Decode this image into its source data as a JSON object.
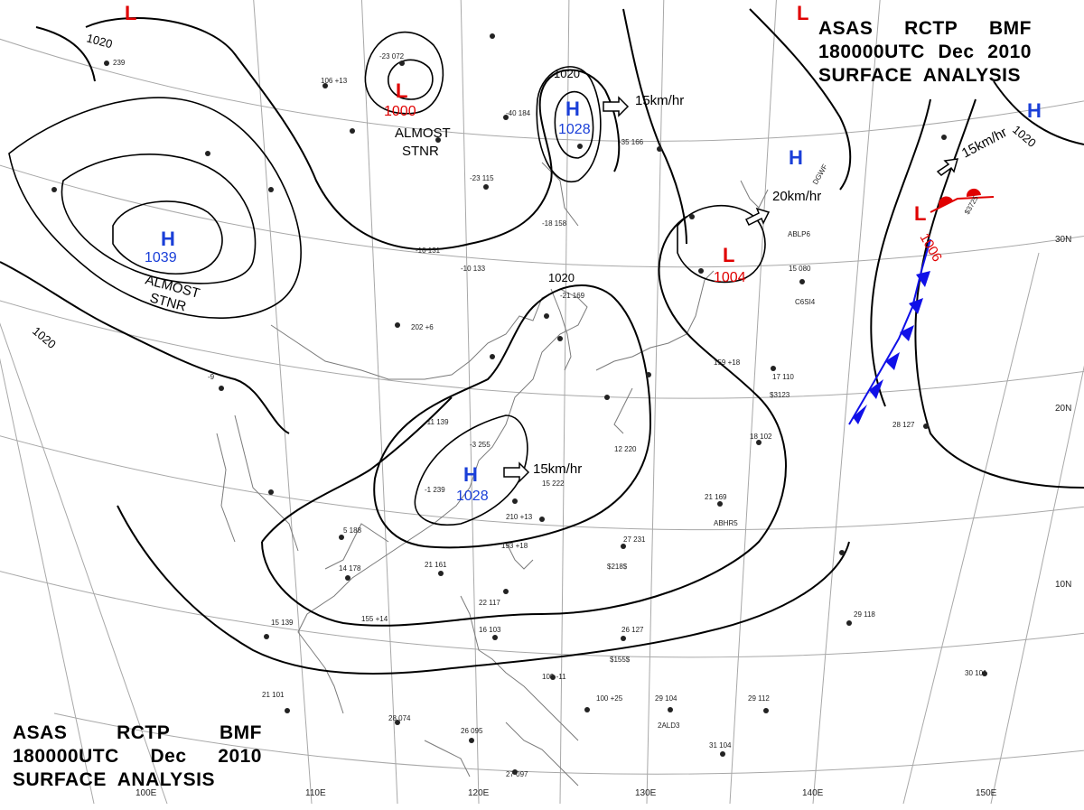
{
  "header": {
    "line1": [
      "ASAS",
      "RCTP",
      "BMF"
    ],
    "line2": [
      "180000UTC",
      "Dec",
      "2010"
    ],
    "line3": "SURFACE  ANALYSIS"
  },
  "colors": {
    "high": "#1a3fd8",
    "low": "#e00000",
    "isobar": "#000000",
    "grid": "#9a9a9a",
    "coast": "#777777",
    "cold_front": "#1010e8",
    "warm_front": "#e00000"
  },
  "pressure_centers": [
    {
      "type": "H",
      "value": "1039",
      "note": "ALMOST STNR"
    },
    {
      "type": "L",
      "value": "1000",
      "note": "ALMOST STNR"
    },
    {
      "type": "H",
      "value": "1028",
      "motion": "15km/hr"
    },
    {
      "type": "H",
      "value": "1028",
      "motion": "15km/hr"
    },
    {
      "type": "L",
      "value": "1004",
      "motion": "20km/hr"
    },
    {
      "type": "L",
      "value": "1006",
      "motion": "15km/hr"
    },
    {
      "type": "H",
      "value": ""
    },
    {
      "type": "H",
      "value": ""
    }
  ],
  "isobar_labels": [
    "1020",
    "1020",
    "1020",
    "1020",
    "1020"
  ],
  "lon_labels": [
    "100E",
    "110E",
    "120E",
    "130E",
    "140E",
    "150E"
  ],
  "lat_labels": [
    "30N",
    "20N",
    "10N"
  ],
  "station_labels": [
    "DGWF",
    "ABLP6",
    "C6SI4",
    "ABHR5",
    "2ALD3",
    "$3123",
    "$218$",
    "$155$",
    "$3725"
  ]
}
